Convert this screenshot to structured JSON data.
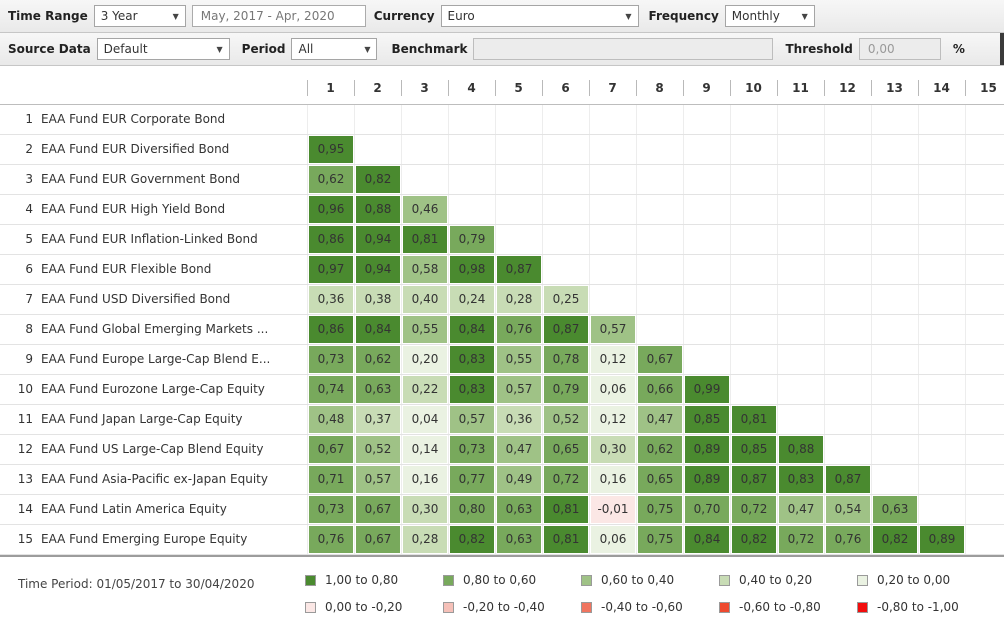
{
  "toolbar": {
    "time_range_label": "Time Range",
    "time_range_value": "3 Year",
    "date_range_value": "May, 2017 - Apr, 2020",
    "currency_label": "Currency",
    "currency_value": "Euro",
    "frequency_label": "Frequency",
    "frequency_value": "Monthly",
    "source_data_label": "Source Data",
    "source_data_value": "Default",
    "period_label": "Period",
    "period_value": "All",
    "benchmark_label": "Benchmark",
    "benchmark_value": "",
    "threshold_label": "Threshold",
    "threshold_value": "0,00",
    "threshold_unit": "%"
  },
  "matrix": {
    "column_headers": [
      "1",
      "2",
      "3",
      "4",
      "5",
      "6",
      "7",
      "8",
      "9",
      "10",
      "11",
      "12",
      "13",
      "14",
      "15"
    ],
    "rows": [
      {
        "num": "1",
        "name": "EAA Fund EUR Corporate Bond",
        "values": []
      },
      {
        "num": "2",
        "name": "EAA Fund EUR Diversified Bond",
        "values": [
          "0,95"
        ]
      },
      {
        "num": "3",
        "name": "EAA Fund EUR Government Bond",
        "values": [
          "0,62",
          "0,82"
        ]
      },
      {
        "num": "4",
        "name": "EAA Fund EUR High Yield Bond",
        "values": [
          "0,96",
          "0,88",
          "0,46"
        ]
      },
      {
        "num": "5",
        "name": "EAA Fund EUR Inflation-Linked Bond",
        "values": [
          "0,86",
          "0,94",
          "0,81",
          "0,79"
        ]
      },
      {
        "num": "6",
        "name": "EAA Fund EUR Flexible Bond",
        "values": [
          "0,97",
          "0,94",
          "0,58",
          "0,98",
          "0,87"
        ]
      },
      {
        "num": "7",
        "name": "EAA Fund USD Diversified Bond",
        "values": [
          "0,36",
          "0,38",
          "0,40",
          "0,24",
          "0,28",
          "0,25"
        ]
      },
      {
        "num": "8",
        "name": "EAA Fund Global Emerging Markets ...",
        "values": [
          "0,86",
          "0,84",
          "0,55",
          "0,84",
          "0,76",
          "0,87",
          "0,57"
        ]
      },
      {
        "num": "9",
        "name": "EAA Fund Europe Large-Cap Blend E...",
        "values": [
          "0,73",
          "0,62",
          "0,20",
          "0,83",
          "0,55",
          "0,78",
          "0,12",
          "0,67"
        ]
      },
      {
        "num": "10",
        "name": "EAA Fund Eurozone Large-Cap Equity",
        "values": [
          "0,74",
          "0,63",
          "0,22",
          "0,83",
          "0,57",
          "0,79",
          "0,06",
          "0,66",
          "0,99"
        ]
      },
      {
        "num": "11",
        "name": "EAA Fund Japan Large-Cap Equity",
        "values": [
          "0,48",
          "0,37",
          "0,04",
          "0,57",
          "0,36",
          "0,52",
          "0,12",
          "0,47",
          "0,85",
          "0,81"
        ]
      },
      {
        "num": "12",
        "name": "EAA Fund US Large-Cap Blend Equity",
        "values": [
          "0,67",
          "0,52",
          "0,14",
          "0,73",
          "0,47",
          "0,65",
          "0,30",
          "0,62",
          "0,89",
          "0,85",
          "0,88"
        ]
      },
      {
        "num": "13",
        "name": "EAA Fund Asia-Pacific ex-Japan Equity",
        "values": [
          "0,71",
          "0,57",
          "0,16",
          "0,77",
          "0,49",
          "0,72",
          "0,16",
          "0,65",
          "0,89",
          "0,87",
          "0,83",
          "0,87"
        ]
      },
      {
        "num": "14",
        "name": "EAA Fund Latin America Equity",
        "values": [
          "0,73",
          "0,67",
          "0,30",
          "0,80",
          "0,63",
          "0,81",
          "-0,01",
          "0,75",
          "0,70",
          "0,72",
          "0,47",
          "0,54",
          "0,63"
        ]
      },
      {
        "num": "15",
        "name": "EAA Fund Emerging Europe Equity",
        "values": [
          "0,76",
          "0,67",
          "0,28",
          "0,82",
          "0,63",
          "0,81",
          "0,06",
          "0,75",
          "0,84",
          "0,82",
          "0,72",
          "0,76",
          "0,82",
          "0,89"
        ]
      }
    ]
  },
  "footer": {
    "time_period": "Time Period: 01/05/2017 to 30/04/2020",
    "legend": [
      {
        "label": "1,00 to 0,80",
        "color": "#4a8a2f"
      },
      {
        "label": "0,80 to 0,60",
        "color": "#78a95c"
      },
      {
        "label": "0,60 to 0,40",
        "color": "#9fc286"
      },
      {
        "label": "0,40 to 0,20",
        "color": "#c8dcb5"
      },
      {
        "label": "0,20 to 0,00",
        "color": "#eaf2e2"
      },
      {
        "label": "0,00 to -0,20",
        "color": "#fbe7e5"
      },
      {
        "label": "-0,20 to -0,40",
        "color": "#f5c0b8"
      },
      {
        "label": "-0,40 to -0,60",
        "color": "#f07560"
      },
      {
        "label": "-0,60 to -0,80",
        "color": "#ee4a2f"
      },
      {
        "label": "-0,80 to -1,00",
        "color": "#f20d0d"
      }
    ]
  }
}
